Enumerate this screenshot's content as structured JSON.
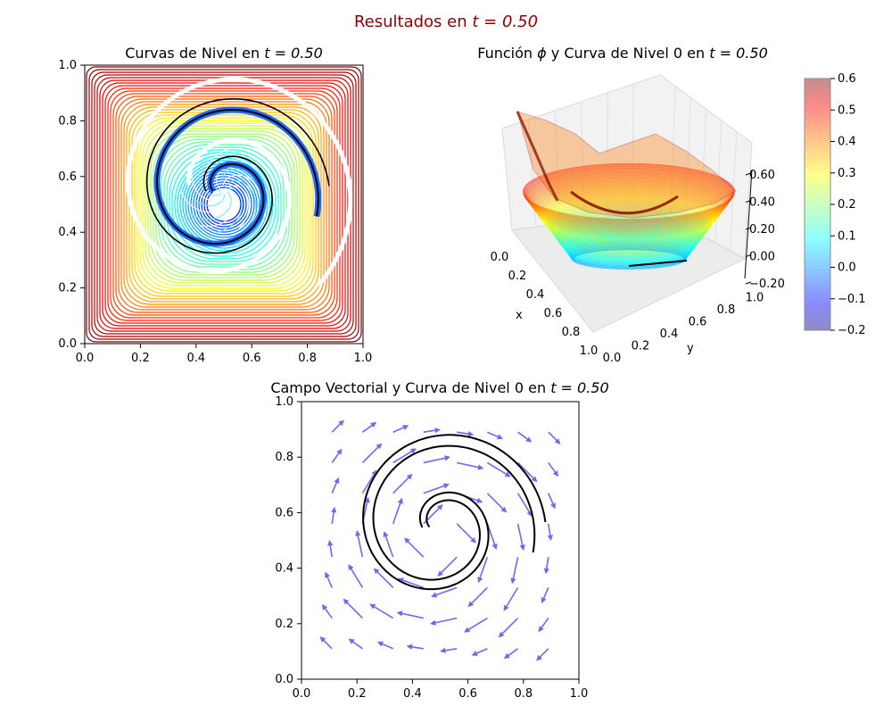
{
  "suptitle": {
    "text": "Resultados en",
    "math": "t = 0.50",
    "color": "#8b0000"
  },
  "chart_data": [
    {
      "id": "contours",
      "type": "contour",
      "title": {
        "text": "Curvas de Nivel en",
        "math": "t = 0.50"
      },
      "xlabel": "",
      "ylabel": "",
      "xlim": [
        0,
        1
      ],
      "ylim": [
        0,
        1
      ],
      "xticks": [
        "0.0",
        "0.2",
        "0.4",
        "0.6",
        "0.8",
        "1.0"
      ],
      "yticks": [
        "0.0",
        "0.2",
        "0.4",
        "0.6",
        "0.8",
        "1.0"
      ],
      "colormap": "jet",
      "level_range": [
        -0.2,
        0.6
      ],
      "zero_level_color": "#000000",
      "spiral": {
        "center": [
          0.5,
          0.55
        ],
        "outer_end": [
          0.85,
          0.35
        ],
        "inner_end": [
          0.37,
          0.5
        ]
      }
    },
    {
      "id": "surface",
      "type": "surface3d",
      "title": {
        "text": "Función",
        "phi": "ϕ",
        "text2": "y Curva de Nivel 0 en",
        "math": "t = 0.50"
      },
      "xlabel": "x",
      "ylabel": "y",
      "xticks": [
        "0.0",
        "0.2",
        "0.4",
        "0.6",
        "0.8",
        "1.0"
      ],
      "yticks": [
        "0.0",
        "0.2",
        "0.4",
        "0.6",
        "0.8",
        "1.0"
      ],
      "zticks": [
        "−0.20",
        "0.00",
        "0.20",
        "0.40",
        "0.60"
      ],
      "zlim": [
        -0.2,
        0.6
      ],
      "colormap": "jet",
      "colorbar": {
        "ticks": [
          "−0.2",
          "−0.1",
          "0.0",
          "0.1",
          "0.2",
          "0.3",
          "0.4",
          "0.5",
          "0.6"
        ],
        "range": [
          -0.2,
          0.6
        ]
      }
    },
    {
      "id": "quiver",
      "type": "quiver",
      "title": {
        "text": "Campo Vectorial y Curva de Nivel 0 en",
        "math": "t = 0.50"
      },
      "xlabel": "",
      "ylabel": "",
      "xlim": [
        0,
        1
      ],
      "ylim": [
        0,
        1
      ],
      "xticks": [
        "0.0",
        "0.2",
        "0.4",
        "0.6",
        "0.8",
        "1.0"
      ],
      "yticks": [
        "0.0",
        "0.2",
        "0.4",
        "0.6",
        "0.8",
        "1.0"
      ],
      "arrow_color": "#6b6bf0",
      "grid_points": [
        0.11,
        0.22,
        0.33,
        0.44,
        0.56,
        0.67,
        0.78,
        0.89
      ],
      "curve_color": "#000000"
    }
  ]
}
